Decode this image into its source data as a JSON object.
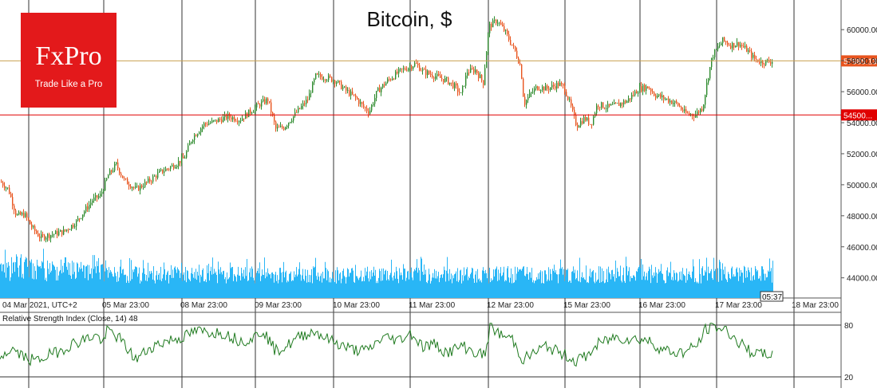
{
  "title": "Bitcoin, $",
  "logo": {
    "brand": "FxPro",
    "tagline": "Trade Like a Pro"
  },
  "price_axis": {
    "ticks": [
      "60000.00",
      "58000.00",
      "56000.00",
      "54000.00",
      "52000.00",
      "50000.00",
      "48000.00",
      "46000.00",
      "44000.00"
    ],
    "min": 42700,
    "max": 61500
  },
  "current_price_label": "57985.13",
  "current_price_value": 57985.13,
  "level_label": "54500...",
  "level_value": 54500,
  "time_axis": {
    "labels": [
      "04 Mar 2021, UTC+2",
      "05 Mar 23:00",
      "08 Mar 23:00",
      "09 Mar 23:00",
      "10 Mar 23:00",
      "11 Mar 23:00",
      "12 Mar 23:00",
      "15 Mar 23:00",
      "16 Mar 23:00",
      "17 Mar 23:00",
      "18 Mar 23:00"
    ],
    "countdown": "05:37"
  },
  "rsi": {
    "label": "Relative Strength Index (Close, 14) 48",
    "levels": [
      "80",
      "20"
    ]
  },
  "colors": {
    "up": "#2e8b2e",
    "down": "#e8541e",
    "volume": "#29b6f6",
    "rsi": "#1f7a1f",
    "level": "#e00000",
    "price_line": "#c8a050",
    "grid": "#333333",
    "logo": "#e3191b"
  },
  "chart_data": {
    "type": "candlestick",
    "symbol": "Bitcoin",
    "unit": "$",
    "x": [
      "04 Mar",
      "05 Mar 23:00",
      "08 Mar 23:00",
      "09 Mar 23:00",
      "10 Mar 23:00",
      "11 Mar 23:00",
      "12 Mar 23:00",
      "15 Mar 23:00",
      "16 Mar 23:00",
      "17 Mar 23:00"
    ],
    "close_path": [
      [
        0,
        50200
      ],
      [
        10,
        49700
      ],
      [
        20,
        48000
      ],
      [
        30,
        48100
      ],
      [
        40,
        47200
      ],
      [
        50,
        46600
      ],
      [
        65,
        46800
      ],
      [
        80,
        47000
      ],
      [
        95,
        47600
      ],
      [
        105,
        48300
      ],
      [
        115,
        49000
      ],
      [
        125,
        49300
      ],
      [
        135,
        50600
      ],
      [
        145,
        51300
      ],
      [
        155,
        50300
      ],
      [
        170,
        49700
      ],
      [
        185,
        50200
      ],
      [
        200,
        50800
      ],
      [
        215,
        51200
      ],
      [
        230,
        51700
      ],
      [
        240,
        53000
      ],
      [
        255,
        53900
      ],
      [
        270,
        54100
      ],
      [
        285,
        54400
      ],
      [
        300,
        54200
      ],
      [
        315,
        54800
      ],
      [
        325,
        55200
      ],
      [
        335,
        55500
      ],
      [
        345,
        53600
      ],
      [
        355,
        53700
      ],
      [
        370,
        54600
      ],
      [
        385,
        55500
      ],
      [
        395,
        57000
      ],
      [
        410,
        56900
      ],
      [
        420,
        56700
      ],
      [
        432,
        56100
      ],
      [
        445,
        55600
      ],
      [
        455,
        55000
      ],
      [
        462,
        54700
      ],
      [
        472,
        56000
      ],
      [
        485,
        56700
      ],
      [
        500,
        57300
      ],
      [
        512,
        57600
      ],
      [
        520,
        57800
      ],
      [
        530,
        57300
      ],
      [
        545,
        57000
      ],
      [
        560,
        56700
      ],
      [
        570,
        56300
      ],
      [
        577,
        55800
      ],
      [
        585,
        57300
      ],
      [
        595,
        57400
      ],
      [
        605,
        56600
      ],
      [
        612,
        60200
      ],
      [
        622,
        60600
      ],
      [
        632,
        59900
      ],
      [
        645,
        58600
      ],
      [
        652,
        57600
      ],
      [
        656,
        55200
      ],
      [
        662,
        55700
      ],
      [
        672,
        56300
      ],
      [
        685,
        56200
      ],
      [
        700,
        56500
      ],
      [
        707,
        56200
      ],
      [
        715,
        55000
      ],
      [
        722,
        53800
      ],
      [
        732,
        54300
      ],
      [
        740,
        53900
      ],
      [
        748,
        55200
      ],
      [
        760,
        55000
      ],
      [
        770,
        55100
      ],
      [
        785,
        55400
      ],
      [
        800,
        56200
      ],
      [
        812,
        56300
      ],
      [
        820,
        55800
      ],
      [
        835,
        55500
      ],
      [
        848,
        55200
      ],
      [
        858,
        54600
      ],
      [
        870,
        54500
      ],
      [
        880,
        55000
      ],
      [
        886,
        56800
      ],
      [
        892,
        58300
      ],
      [
        905,
        59300
      ],
      [
        915,
        59000
      ],
      [
        925,
        59100
      ],
      [
        935,
        58700
      ],
      [
        945,
        58100
      ],
      [
        955,
        57900
      ],
      [
        968,
        57985
      ]
    ],
    "rsi_path": [
      [
        0,
        43
      ],
      [
        15,
        52
      ],
      [
        30,
        43
      ],
      [
        45,
        38
      ],
      [
        60,
        45
      ],
      [
        75,
        50
      ],
      [
        90,
        58
      ],
      [
        105,
        63
      ],
      [
        120,
        68
      ],
      [
        130,
        60
      ],
      [
        135,
        75
      ],
      [
        150,
        64
      ],
      [
        170,
        40
      ],
      [
        190,
        55
      ],
      [
        210,
        62
      ],
      [
        230,
        66
      ],
      [
        245,
        73
      ],
      [
        260,
        72
      ],
      [
        280,
        71
      ],
      [
        300,
        62
      ],
      [
        315,
        64
      ],
      [
        330,
        74
      ],
      [
        345,
        50
      ],
      [
        360,
        56
      ],
      [
        378,
        68
      ],
      [
        395,
        73
      ],
      [
        410,
        64
      ],
      [
        425,
        58
      ],
      [
        440,
        52
      ],
      [
        460,
        50
      ],
      [
        480,
        66
      ],
      [
        500,
        63
      ],
      [
        515,
        71
      ],
      [
        530,
        55
      ],
      [
        545,
        58
      ],
      [
        560,
        48
      ],
      [
        580,
        56
      ],
      [
        595,
        48
      ],
      [
        608,
        45
      ],
      [
        614,
        79
      ],
      [
        628,
        68
      ],
      [
        642,
        64
      ],
      [
        655,
        40
      ],
      [
        670,
        48
      ],
      [
        685,
        56
      ],
      [
        700,
        48
      ],
      [
        712,
        44
      ],
      [
        720,
        38
      ],
      [
        735,
        44
      ],
      [
        750,
        58
      ],
      [
        770,
        66
      ],
      [
        790,
        64
      ],
      [
        810,
        63
      ],
      [
        830,
        52
      ],
      [
        845,
        48
      ],
      [
        860,
        49
      ],
      [
        875,
        58
      ],
      [
        885,
        76
      ],
      [
        897,
        78
      ],
      [
        912,
        73
      ],
      [
        925,
        60
      ],
      [
        940,
        50
      ],
      [
        955,
        45
      ],
      [
        968,
        48
      ]
    ],
    "rsi_range": [
      0,
      100
    ],
    "volume_range": "relative"
  }
}
